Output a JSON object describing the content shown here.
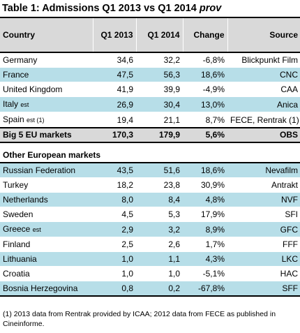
{
  "title_main": "Table 1: Admissions Q1 2013 vs Q1 2014 ",
  "title_suffix": "prov",
  "columns": [
    "Country",
    "Q1 2013",
    "Q1 2014",
    "Change",
    "Source"
  ],
  "eu5_rows": [
    {
      "country": "Germany",
      "est": "",
      "q2013": "34,6",
      "q2014": "32,2",
      "change": "-6,8%",
      "source": "Blickpunkt Film"
    },
    {
      "country": "France",
      "est": "",
      "q2013": "47,5",
      "q2014": "56,3",
      "change": "18,6%",
      "source": "CNC"
    },
    {
      "country": "United Kingdom",
      "est": "",
      "q2013": "41,9",
      "q2014": "39,9",
      "change": "-4,9%",
      "source": "CAA"
    },
    {
      "country": "Italy",
      "est": "est",
      "q2013": "26,9",
      "q2014": "30,4",
      "change": "13,0%",
      "source": "Anica"
    },
    {
      "country": "Spain",
      "est": "est (1)",
      "q2013": "19,4",
      "q2014": "21,1",
      "change": "8,7%",
      "source": "FECE, Rentrak (1)"
    }
  ],
  "total": {
    "label": "Big 5 EU markets",
    "q2013": "170,3",
    "q2014": "179,9",
    "change": "5,6%",
    "source": "OBS"
  },
  "section_label": "Other European markets",
  "other_rows": [
    {
      "country": "Russian Federation",
      "est": "",
      "q2013": "43,5",
      "q2014": "51,6",
      "change": "18,6%",
      "source": "Nevafilm"
    },
    {
      "country": "Turkey",
      "est": "",
      "q2013": "18,2",
      "q2014": "23,8",
      "change": "30,9%",
      "source": "Antrakt"
    },
    {
      "country": "Netherlands",
      "est": "",
      "q2013": "8,0",
      "q2014": "8,4",
      "change": "4,8%",
      "source": "NVF"
    },
    {
      "country": "Sweden",
      "est": "",
      "q2013": "4,5",
      "q2014": "5,3",
      "change": "17,9%",
      "source": "SFI"
    },
    {
      "country": "Greece",
      "est": "est",
      "q2013": "2,9",
      "q2014": "3,2",
      "change": "8,9%",
      "source": "GFC"
    },
    {
      "country": "Finland",
      "est": "",
      "q2013": "2,5",
      "q2014": "2,6",
      "change": "1,7%",
      "source": "FFF"
    },
    {
      "country": "Lithuania",
      "est": "",
      "q2013": "1,0",
      "q2014": "1,1",
      "change": "4,3%",
      "source": "LKC"
    },
    {
      "country": "Croatia",
      "est": "",
      "q2013": "1,0",
      "q2014": "1,0",
      "change": "-5,1%",
      "source": "HAC"
    },
    {
      "country": "Bosnia Herzegovina",
      "est": "",
      "q2013": "0,8",
      "q2014": "0,2",
      "change": "-67,8%",
      "source": "SFF"
    }
  ],
  "footnote": "(1) 2013 data from Rentrak provided by ICAA; 2012 data from FECE as published in Cineinforme.",
  "colors": {
    "header_bg": "#d9d9d9",
    "shade_bg": "#b7dee8"
  }
}
